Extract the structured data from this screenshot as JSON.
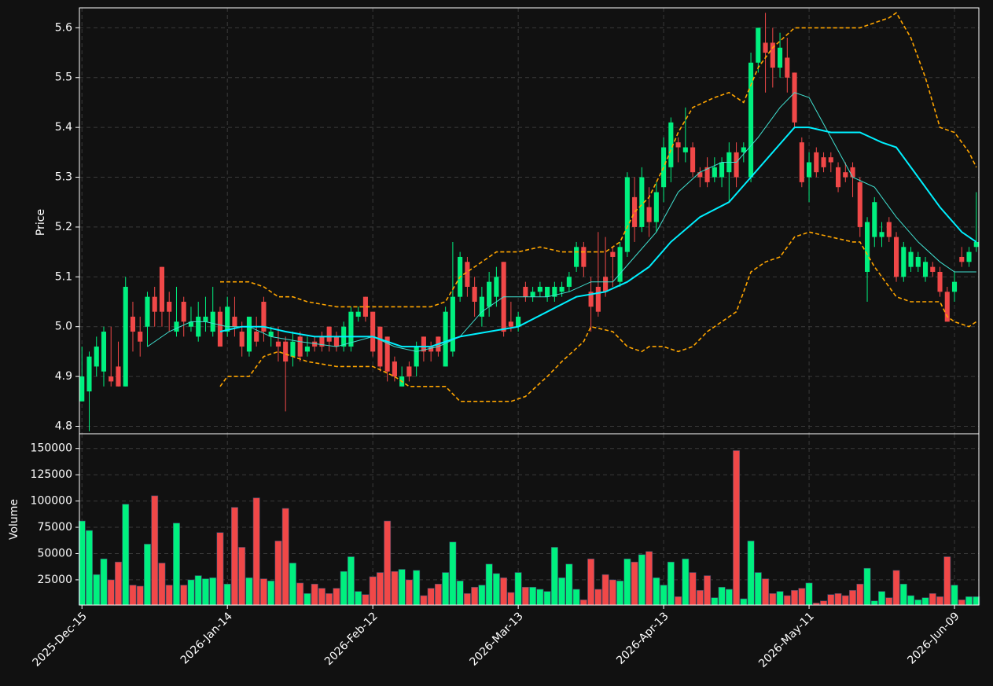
{
  "chart_data": [
    {
      "type": "candlestick",
      "ylabel": "Price",
      "up_color": "#00f07f",
      "down_color": "#f04848",
      "grid": true,
      "xlim": [
        -0.35,
        123.35
      ],
      "ylim": [
        4.785,
        5.64
      ],
      "yticks": [
        4.8,
        4.9,
        {
          "value": 5,
          "label": "5.0"
        },
        5.1,
        5.2,
        5.3,
        5.4,
        5.5,
        5.6
      ],
      "open": [
        4.85,
        4.87,
        4.92,
        4.91,
        4.9,
        4.92,
        4.88,
        5.02,
        4.99,
        5.0,
        5.06,
        5.12,
        5.05,
        4.99,
        5.05,
        5.0,
        4.98,
        5.01,
        4.99,
        5.03,
        4.99,
        5.02,
        4.99,
        4.95,
        4.99,
        5.05,
        4.98,
        4.97,
        4.97,
        4.94,
        4.98,
        4.95,
        4.97,
        4.98,
        5.0,
        4.98,
        4.96,
        4.96,
        5.02,
        5.06,
        5.03,
        5.0,
        4.98,
        4.93,
        4.88,
        4.92,
        4.92,
        4.98,
        4.96,
        4.98,
        4.92,
        4.95,
        5.06,
        5.13,
        5.08,
        5.02,
        5.04,
        5.06,
        5.13,
        5.01,
        5.0,
        5.08,
        5.06,
        5.07,
        5.06,
        5.06,
        5.07,
        5.08,
        5.12,
        5.16,
        5.07,
        5.08,
        5.1,
        5.15,
        5.09,
        5.15,
        5.26,
        5.2,
        5.24,
        5.21,
        5.28,
        5.32,
        5.37,
        5.35,
        5.36,
        5.31,
        5.32,
        5.3,
        5.3,
        5.31,
        5.35,
        5.35,
        5.3,
        5.53,
        5.57,
        5.57,
        5.52,
        5.54,
        5.51,
        5.37,
        5.3,
        5.35,
        5.34,
        5.34,
        5.32,
        5.31,
        5.32,
        5.29,
        5.11,
        5.18,
        5.18,
        5.21,
        5.18,
        5.1,
        5.12,
        5.12,
        5.1,
        5.12,
        5.11,
        5.07,
        5.07,
        5.14,
        5.13,
        5.16
      ],
      "high": [
        4.96,
        4.95,
        4.98,
        5.0,
        5.0,
        4.97,
        5.1,
        5.05,
        5.02,
        5.07,
        5.08,
        5.12,
        5.07,
        5.08,
        5.06,
        5.04,
        5.05,
        5.06,
        5.08,
        5.04,
        5.06,
        5.06,
        5.01,
        5.02,
        5.02,
        5.06,
        5.0,
        5.0,
        4.98,
        4.99,
        4.99,
        4.98,
        4.98,
        4.99,
        5.0,
        4.99,
        5.01,
        5.04,
        5.04,
        5.06,
        5.03,
        5.0,
        4.98,
        4.94,
        4.92,
        4.93,
        4.97,
        4.98,
        4.97,
        4.98,
        5.04,
        5.17,
        5.15,
        5.14,
        5.1,
        5.08,
        5.11,
        5.12,
        5.13,
        5.05,
        5.03,
        5.09,
        5.08,
        5.09,
        5.08,
        5.09,
        5.09,
        5.11,
        5.17,
        5.17,
        5.1,
        5.19,
        5.18,
        5.16,
        5.17,
        5.31,
        5.3,
        5.32,
        5.28,
        5.29,
        5.38,
        5.42,
        5.38,
        5.44,
        5.37,
        5.32,
        5.34,
        5.34,
        5.34,
        5.37,
        5.37,
        5.37,
        5.55,
        5.6,
        5.63,
        5.6,
        5.59,
        5.58,
        5.51,
        5.38,
        5.35,
        5.36,
        5.35,
        5.35,
        5.33,
        5.33,
        5.33,
        5.3,
        5.22,
        5.26,
        5.21,
        5.22,
        5.19,
        5.17,
        5.16,
        5.15,
        5.14,
        5.13,
        5.12,
        5.08,
        5.11,
        5.16,
        5.16,
        5.27
      ],
      "low": [
        4.85,
        4.79,
        4.9,
        4.88,
        4.88,
        4.88,
        4.88,
        4.95,
        4.94,
        4.96,
        5.0,
        5.0,
        4.99,
        4.98,
        4.98,
        4.99,
        4.97,
        4.99,
        4.98,
        4.96,
        4.98,
        4.98,
        4.94,
        4.94,
        4.96,
        4.97,
        4.96,
        4.93,
        4.83,
        4.92,
        4.93,
        4.94,
        4.95,
        4.95,
        4.95,
        4.95,
        4.95,
        4.95,
        5.01,
        5.01,
        4.94,
        4.91,
        4.89,
        4.89,
        4.88,
        4.89,
        4.9,
        4.93,
        4.93,
        4.94,
        4.92,
        4.94,
        5.05,
        5.06,
        5.02,
        5.0,
        5.02,
        5.04,
        4.98,
        4.99,
        4.99,
        5.05,
        5.05,
        5.06,
        5.05,
        5.05,
        5.06,
        5.07,
        5.11,
        5.1,
        4.99,
        5.02,
        5.06,
        5.08,
        5.08,
        5.14,
        5.17,
        5.19,
        5.18,
        5.19,
        5.25,
        5.29,
        5.33,
        5.33,
        5.3,
        5.28,
        5.28,
        5.29,
        5.28,
        5.25,
        5.28,
        5.33,
        5.29,
        5.51,
        5.47,
        5.48,
        5.5,
        5.47,
        5.4,
        5.28,
        5.25,
        5.3,
        5.31,
        5.31,
        5.27,
        5.29,
        5.26,
        5.18,
        5.05,
        5.16,
        5.16,
        5.17,
        5.09,
        5.09,
        5.11,
        5.11,
        5.09,
        5.1,
        5.06,
        5.01,
        5.05,
        5.12,
        5.12,
        5.15
      ],
      "close": [
        4.9,
        4.94,
        4.96,
        4.99,
        4.89,
        4.88,
        5.08,
        4.99,
        4.97,
        5.06,
        5.03,
        5.03,
        5.03,
        5.01,
        5.01,
        5.01,
        5.02,
        5.02,
        5.03,
        4.96,
        5.04,
        5.0,
        4.96,
        5.02,
        4.97,
        4.99,
        4.99,
        4.96,
        4.93,
        4.97,
        4.94,
        4.96,
        4.96,
        4.96,
        4.97,
        4.96,
        5.0,
        5.03,
        5.03,
        5.02,
        4.95,
        4.92,
        4.91,
        4.9,
        4.9,
        4.9,
        4.96,
        4.95,
        4.95,
        4.95,
        5.03,
        5.06,
        5.14,
        5.08,
        5.05,
        5.06,
        5.09,
        5.1,
        4.99,
        5.0,
        5.02,
        5.06,
        5.07,
        5.08,
        5.08,
        5.08,
        5.08,
        5.1,
        5.16,
        5.12,
        5.04,
        5.03,
        5.07,
        5.14,
        5.16,
        5.3,
        5.2,
        5.3,
        5.21,
        5.27,
        5.36,
        5.41,
        5.36,
        5.36,
        5.31,
        5.3,
        5.29,
        5.32,
        5.33,
        5.35,
        5.3,
        5.36,
        5.53,
        5.6,
        5.55,
        5.52,
        5.56,
        5.5,
        5.41,
        5.29,
        5.33,
        5.31,
        5.32,
        5.33,
        5.28,
        5.3,
        5.3,
        5.2,
        5.21,
        5.25,
        5.19,
        5.18,
        5.1,
        5.16,
        5.15,
        5.14,
        5.13,
        5.11,
        5.07,
        5.01,
        5.09,
        5.13,
        5.15,
        5.17
      ],
      "lines": [
        {
          "color": "#40e0d0",
          "width": 1,
          "dash": false,
          "x": [
            9,
            12,
            15,
            17,
            20,
            23,
            26,
            30,
            35,
            40,
            43,
            46,
            49,
            52,
            55,
            58,
            61,
            64,
            67,
            70,
            73,
            76,
            79,
            82,
            85,
            88,
            90,
            93,
            96,
            98,
            100,
            103,
            106,
            109,
            112,
            115,
            118,
            120,
            123
          ],
          "values": [
            4.96,
            4.99,
            5.01,
            5.01,
            5.0,
            5.0,
            4.98,
            4.97,
            4.96,
            4.98,
            4.96,
            4.95,
            4.96,
            4.98,
            5.03,
            5.06,
            5.06,
            5.06,
            5.07,
            5.09,
            5.09,
            5.14,
            5.19,
            5.27,
            5.31,
            5.33,
            5.33,
            5.38,
            5.44,
            5.47,
            5.46,
            5.38,
            5.3,
            5.28,
            5.22,
            5.17,
            5.13,
            5.11,
            5.11
          ]
        },
        {
          "color": "#00f0ff",
          "width": 2,
          "dash": false,
          "x": [
            19,
            22,
            25,
            28,
            32,
            36,
            40,
            44,
            48,
            52,
            56,
            60,
            64,
            68,
            72,
            75,
            78,
            81,
            85,
            89,
            92,
            95,
            98,
            100,
            103,
            107,
            110,
            112,
            115,
            118,
            121,
            123
          ],
          "values": [
            4.99,
            5.0,
            5.0,
            4.99,
            4.98,
            4.98,
            4.98,
            4.96,
            4.96,
            4.98,
            4.99,
            5.0,
            5.03,
            5.06,
            5.07,
            5.09,
            5.12,
            5.17,
            5.22,
            5.25,
            5.3,
            5.35,
            5.4,
            5.4,
            5.39,
            5.39,
            5.37,
            5.36,
            5.3,
            5.24,
            5.19,
            5.17
          ]
        },
        {
          "color": "#ffa500",
          "width": 1.6,
          "dash": true,
          "x": [
            19,
            23,
            25,
            27,
            29,
            31,
            35,
            40,
            44,
            48,
            50,
            52,
            55,
            57,
            60,
            63,
            66,
            69,
            72,
            74,
            76,
            78,
            80,
            82,
            84,
            87,
            89,
            91,
            93,
            95,
            98,
            100,
            105,
            107,
            109,
            111,
            112,
            114,
            116,
            118,
            120,
            122,
            123
          ],
          "values": [
            5.09,
            5.09,
            5.08,
            5.06,
            5.06,
            5.05,
            5.04,
            5.04,
            5.04,
            5.04,
            5.05,
            5.1,
            5.13,
            5.15,
            5.15,
            5.16,
            5.15,
            5.15,
            5.15,
            5.17,
            5.23,
            5.26,
            5.32,
            5.39,
            5.44,
            5.46,
            5.47,
            5.45,
            5.52,
            5.56,
            5.6,
            5.6,
            5.6,
            5.6,
            5.61,
            5.62,
            5.63,
            5.58,
            5.5,
            5.4,
            5.39,
            5.35,
            5.32
          ]
        },
        {
          "color": "#ffa500",
          "width": 1.6,
          "dash": true,
          "x": [
            19,
            20,
            23,
            25,
            27,
            29,
            31,
            35,
            40,
            43,
            45,
            50,
            52,
            56,
            59,
            61,
            64,
            66,
            69,
            70,
            73,
            75,
            77,
            78,
            80,
            82,
            84,
            86,
            88,
            90,
            92,
            94,
            96,
            98,
            100,
            103,
            106,
            107,
            109,
            111,
            112,
            114,
            116,
            118,
            119,
            120,
            122,
            123
          ],
          "values": [
            4.88,
            4.9,
            4.9,
            4.94,
            4.95,
            4.94,
            4.93,
            4.92,
            4.92,
            4.9,
            4.88,
            4.88,
            4.85,
            4.85,
            4.85,
            4.86,
            4.9,
            4.93,
            4.97,
            5.0,
            4.99,
            4.96,
            4.95,
            4.96,
            4.96,
            4.95,
            4.96,
            4.99,
            5.01,
            5.03,
            5.11,
            5.13,
            5.14,
            5.18,
            5.19,
            5.18,
            5.17,
            5.17,
            5.12,
            5.08,
            5.06,
            5.05,
            5.05,
            5.05,
            5.02,
            5.01,
            5.0,
            5.01
          ]
        }
      ]
    },
    {
      "type": "bar",
      "ylabel": "Volume",
      "grid": true,
      "xlim": [
        -0.35,
        123.35
      ],
      "ylim": [
        1000,
        164000
      ],
      "yticks": [
        25000,
        50000,
        75000,
        100000,
        125000,
        150000
      ],
      "xticks": [
        {
          "value": 0,
          "label": "2025-Dec-15"
        },
        {
          "value": 20,
          "label": "2026-Jan-14"
        },
        {
          "value": 40,
          "label": "2026-Feb-12"
        },
        {
          "value": 60,
          "label": "2026-Mar-13"
        },
        {
          "value": 80,
          "label": "2026-Apr-13"
        },
        {
          "value": 100,
          "label": "2026-May-11"
        },
        {
          "value": 120,
          "label": "2026-Jun-09"
        }
      ],
      "values": [
        81000,
        72000,
        30000,
        45000,
        25000,
        42000,
        97000,
        20000,
        19000,
        59000,
        105000,
        41000,
        20000,
        79000,
        20000,
        25000,
        29000,
        26000,
        27000,
        70000,
        21000,
        94000,
        56000,
        27000,
        103000,
        26000,
        24000,
        62000,
        93000,
        41000,
        22000,
        12000,
        21000,
        17000,
        12000,
        17000,
        33000,
        47000,
        14000,
        11000,
        28000,
        32000,
        81000,
        33000,
        35000,
        25000,
        34000,
        10000,
        17000,
        21000,
        32000,
        61000,
        24000,
        12000,
        18000,
        20000,
        40000,
        31000,
        27000,
        13000,
        32000,
        18000,
        18000,
        16000,
        14000,
        56000,
        27000,
        40000,
        16000,
        6000,
        45000,
        16000,
        30000,
        25000,
        24000,
        45000,
        42000,
        49000,
        52000,
        27000,
        20000,
        42000,
        9000,
        45000,
        32000,
        15000,
        29000,
        8000,
        18000,
        16000,
        148000,
        7000,
        62000,
        32000,
        26000,
        12000,
        14000,
        10000,
        15000,
        17000,
        22000,
        3000,
        5000,
        11000,
        12000,
        10000,
        15000,
        21000,
        36000,
        5000,
        14000,
        8000,
        34000,
        21000,
        10000,
        6000,
        8000,
        12000,
        9000,
        47000,
        20000,
        6000,
        9000,
        9000
      ]
    }
  ]
}
